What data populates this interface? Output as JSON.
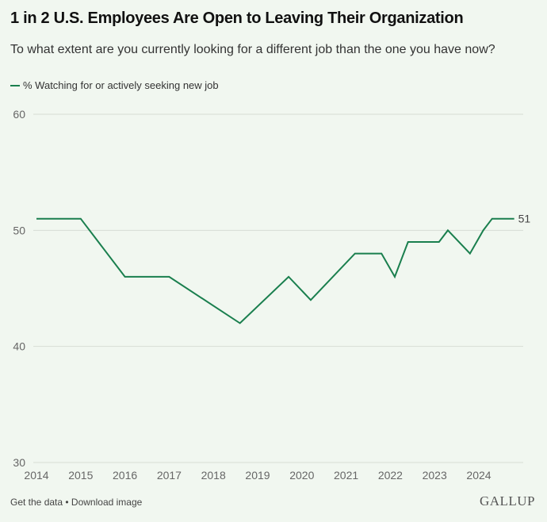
{
  "chart_data": {
    "type": "line",
    "title": "1 in 2 U.S. Employees Are Open to Leaving Their Organization",
    "subtitle": "To what extent are you currently looking for a different job than the one you have now?",
    "xlabel": "",
    "ylabel": "",
    "ylim": [
      30,
      60
    ],
    "xlim": [
      2014,
      2025
    ],
    "yticks": [
      30,
      40,
      50,
      60
    ],
    "xticks": [
      2014,
      2015,
      2016,
      2017,
      2018,
      2019,
      2020,
      2021,
      2022,
      2023,
      2024
    ],
    "grid": true,
    "legend": "top-left",
    "series": [
      {
        "name": "% Watching for or actively seeking new job",
        "color": "#1a7f4e",
        "x": [
          2014.0,
          2015.0,
          2016.0,
          2017.0,
          2018.6,
          2019.7,
          2020.2,
          2021.2,
          2021.8,
          2022.1,
          2022.4,
          2023.1,
          2023.3,
          2023.8,
          2024.1,
          2024.3,
          2024.8
        ],
        "values": [
          51,
          51,
          46,
          46,
          42,
          46,
          44,
          48,
          48,
          46,
          49,
          49,
          50,
          48,
          50,
          51,
          51
        ]
      }
    ],
    "end_label": "51"
  },
  "footer": {
    "get_data": "Get the data",
    "separator": " • ",
    "download": "Download image",
    "logo": "GALLUP"
  }
}
